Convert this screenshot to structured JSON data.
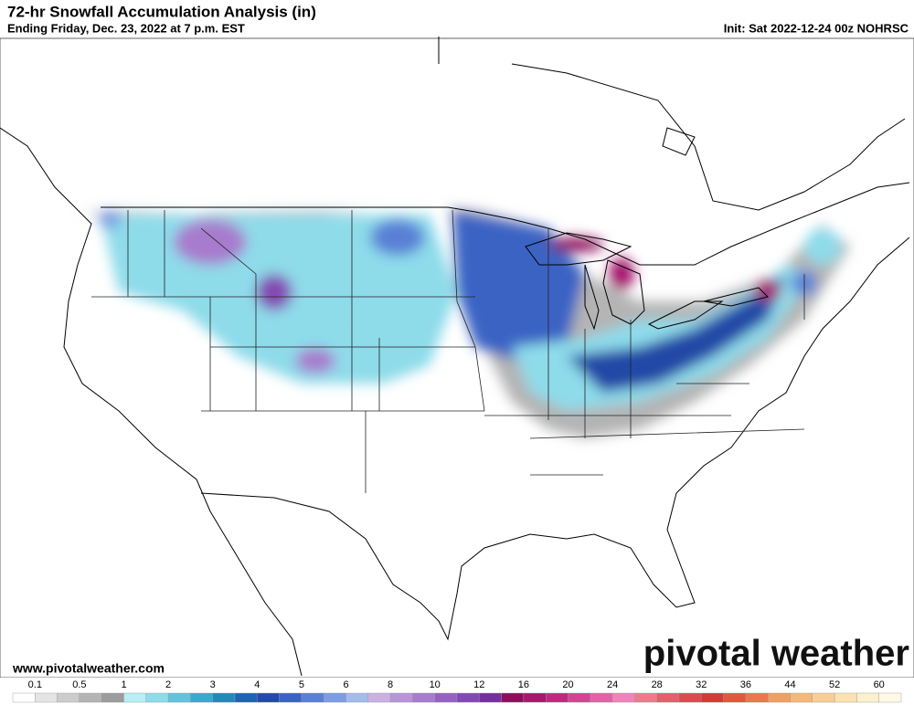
{
  "header": {
    "title": "72-hr Snowfall Accumulation Analysis (in)",
    "subtitle": "Ending Friday, Dec. 23, 2022 at 7 p.m. EST",
    "init": "Init: Sat 2022-12-24 00z NOHRSC"
  },
  "footer": {
    "website": "www.pivotalweather.com",
    "brand": "pivotal weather"
  },
  "colorbar": {
    "labels": [
      0.1,
      0.5,
      1,
      2,
      3,
      4,
      5,
      6,
      8,
      10,
      12,
      16,
      20,
      24,
      28,
      32,
      36,
      44,
      52,
      60
    ],
    "colors": [
      "#ffffff",
      "#e4e4e4",
      "#cccccc",
      "#b4b4b4",
      "#9c9c9c",
      "#b8eef4",
      "#8edbea",
      "#63c3de",
      "#3ea8cc",
      "#2389b8",
      "#1f63b4",
      "#2449a6",
      "#3a63c4",
      "#5a80d6",
      "#7c9de2",
      "#a3bcec",
      "#cbb0e4",
      "#b895d8",
      "#a77cce",
      "#9562c2",
      "#8448b4",
      "#742f9e",
      "#8c0f5c",
      "#a5196e",
      "#bd2a80",
      "#d04592",
      "#e063a8",
      "#ee84bc",
      "#ea7c8c",
      "#e0626e",
      "#d84c52",
      "#cf3c34",
      "#dc5a3e",
      "#e67a4e",
      "#efa064",
      "#f3b87c",
      "#f7cf96",
      "#fbe2b2",
      "#fdf0cf",
      "#fff8e6"
    ]
  }
}
